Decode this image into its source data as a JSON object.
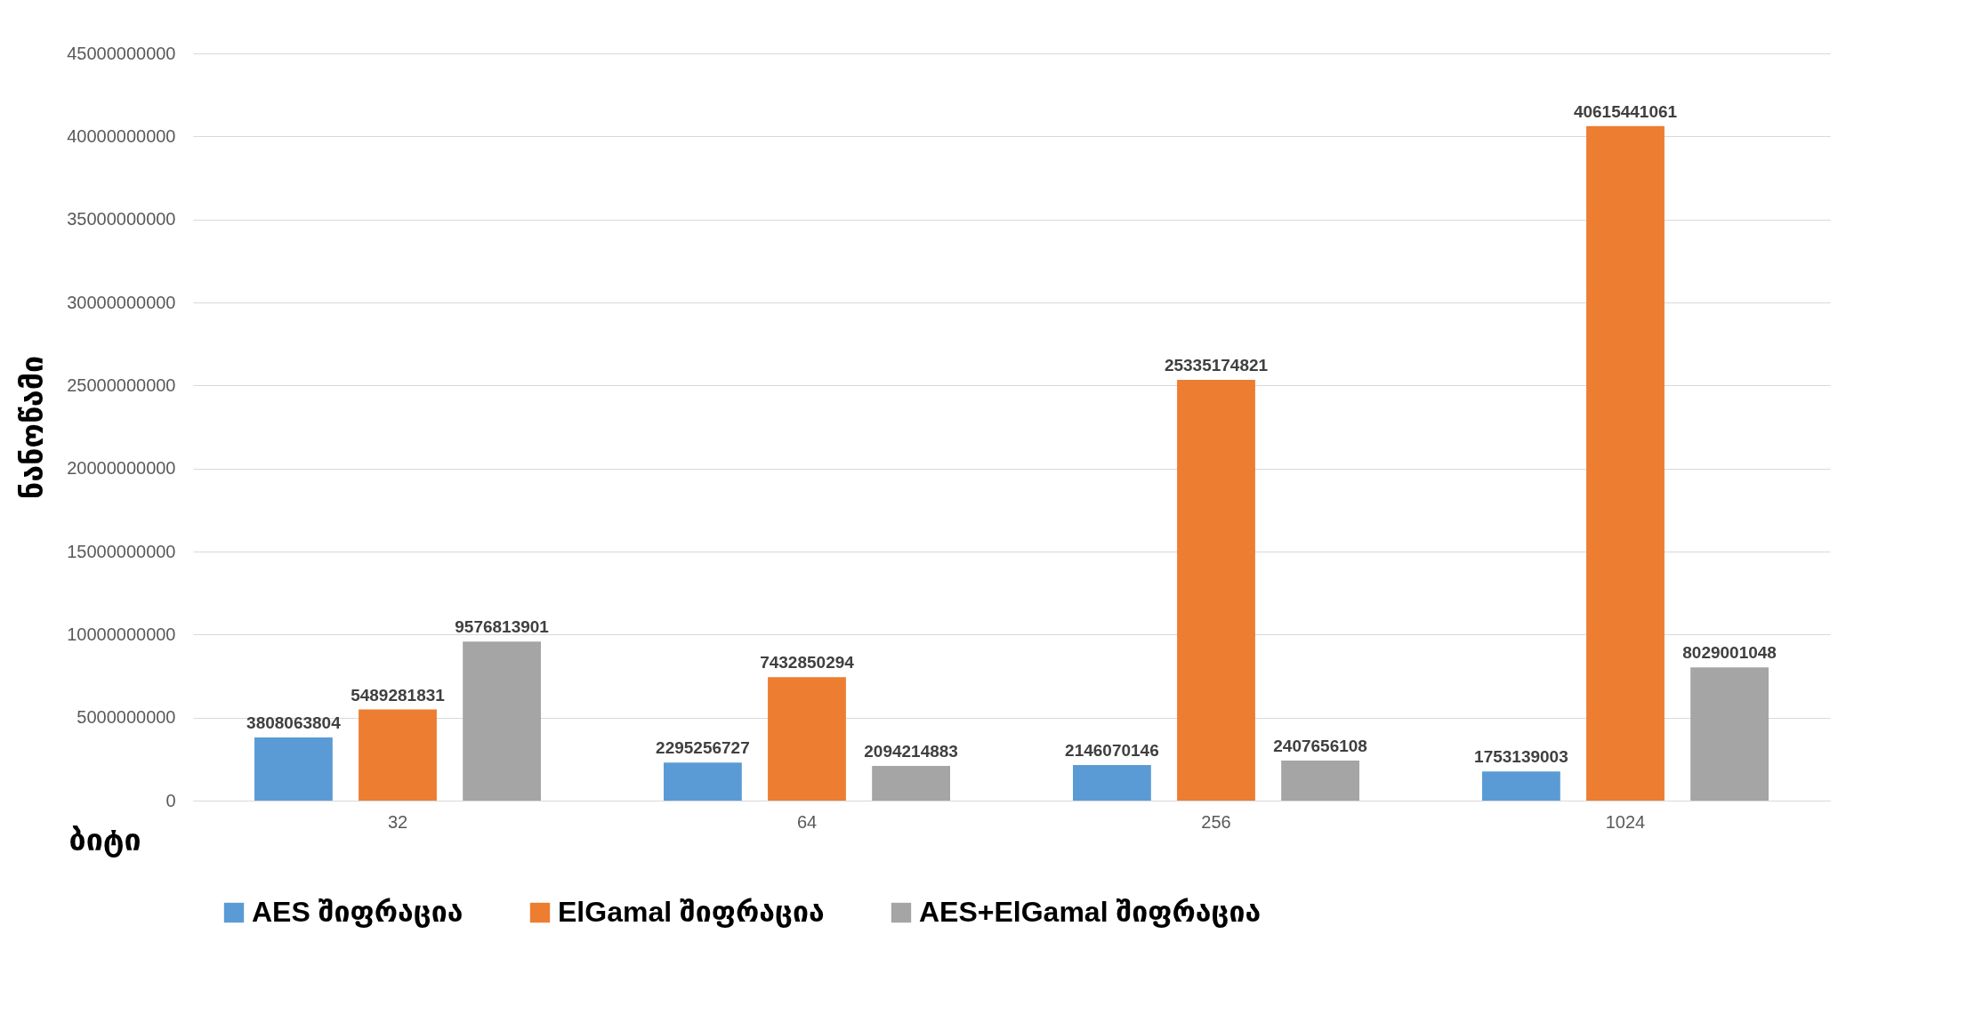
{
  "chart_data": {
    "type": "bar",
    "xlabel": "ბიტი",
    "ylabel": "ნანოწამი",
    "categories": [
      "32",
      "64",
      "256",
      "1024"
    ],
    "series": [
      {
        "name": "AES შიფრაცია",
        "color": "#5b9bd5",
        "values": [
          3808063804,
          2295256727,
          2146070146,
          1753139003
        ]
      },
      {
        "name": "ElGamal შიფრაცია",
        "color": "#ed7d31",
        "values": [
          5489281831,
          7432850294,
          25335174821,
          40615441061
        ]
      },
      {
        "name": "AES+ElGamal შიფრაცია",
        "color": "#a5a5a5",
        "values": [
          9576813901,
          2094214883,
          2407656108,
          8029001048
        ]
      }
    ],
    "ylim": [
      0,
      45000000000
    ],
    "yticks": [
      0,
      5000000000,
      10000000000,
      15000000000,
      20000000000,
      25000000000,
      30000000000,
      35000000000,
      40000000000,
      45000000000
    ],
    "grid": "y",
    "legend": "bottom",
    "data_labels": true
  }
}
